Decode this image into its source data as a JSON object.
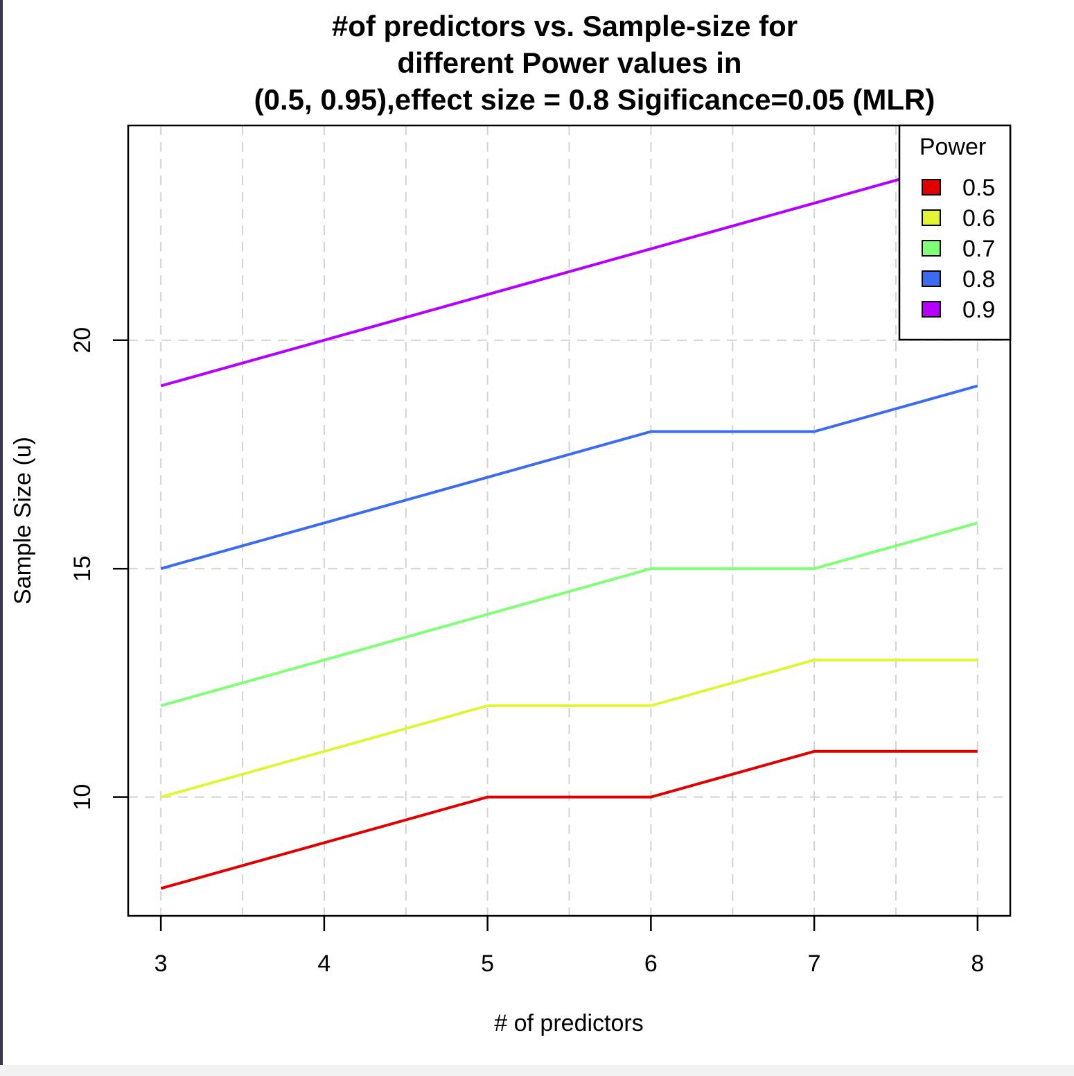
{
  "chart_data": {
    "type": "line",
    "title_lines": [
      "#of predictors vs. Sample-size for",
      "different Power values in",
      "(0.5, 0.95),effect size = 0.8 Sigificance=0.05 (MLR)"
    ],
    "xlabel": "# of predictors",
    "ylabel": "Sample Size (u)",
    "x": [
      3,
      4,
      5,
      6,
      7,
      8
    ],
    "x_ticks": [
      "3",
      "4",
      "5",
      "6",
      "7",
      "8"
    ],
    "y_ticks": [
      "10",
      "15",
      "20"
    ],
    "xlim": [
      2.8,
      8.2
    ],
    "ylim": [
      7.4,
      24.7
    ],
    "grid": true,
    "legend": {
      "title": "Power",
      "placement": "top-right"
    },
    "series": [
      {
        "name": "0.5",
        "color": "#e00000",
        "values": [
          8,
          9,
          10,
          10,
          11,
          11
        ]
      },
      {
        "name": "0.6",
        "color": "#e1f536",
        "values": [
          10,
          11,
          12,
          12,
          13,
          13
        ]
      },
      {
        "name": "0.7",
        "color": "#80ff78",
        "values": [
          12,
          13,
          14,
          15,
          15,
          16
        ]
      },
      {
        "name": "0.8",
        "color": "#3b6cf0",
        "values": [
          15,
          16,
          17,
          18,
          18,
          19
        ]
      },
      {
        "name": "0.9",
        "color": "#b300ff",
        "values": [
          19,
          20,
          21,
          22,
          23,
          24
        ]
      }
    ]
  }
}
